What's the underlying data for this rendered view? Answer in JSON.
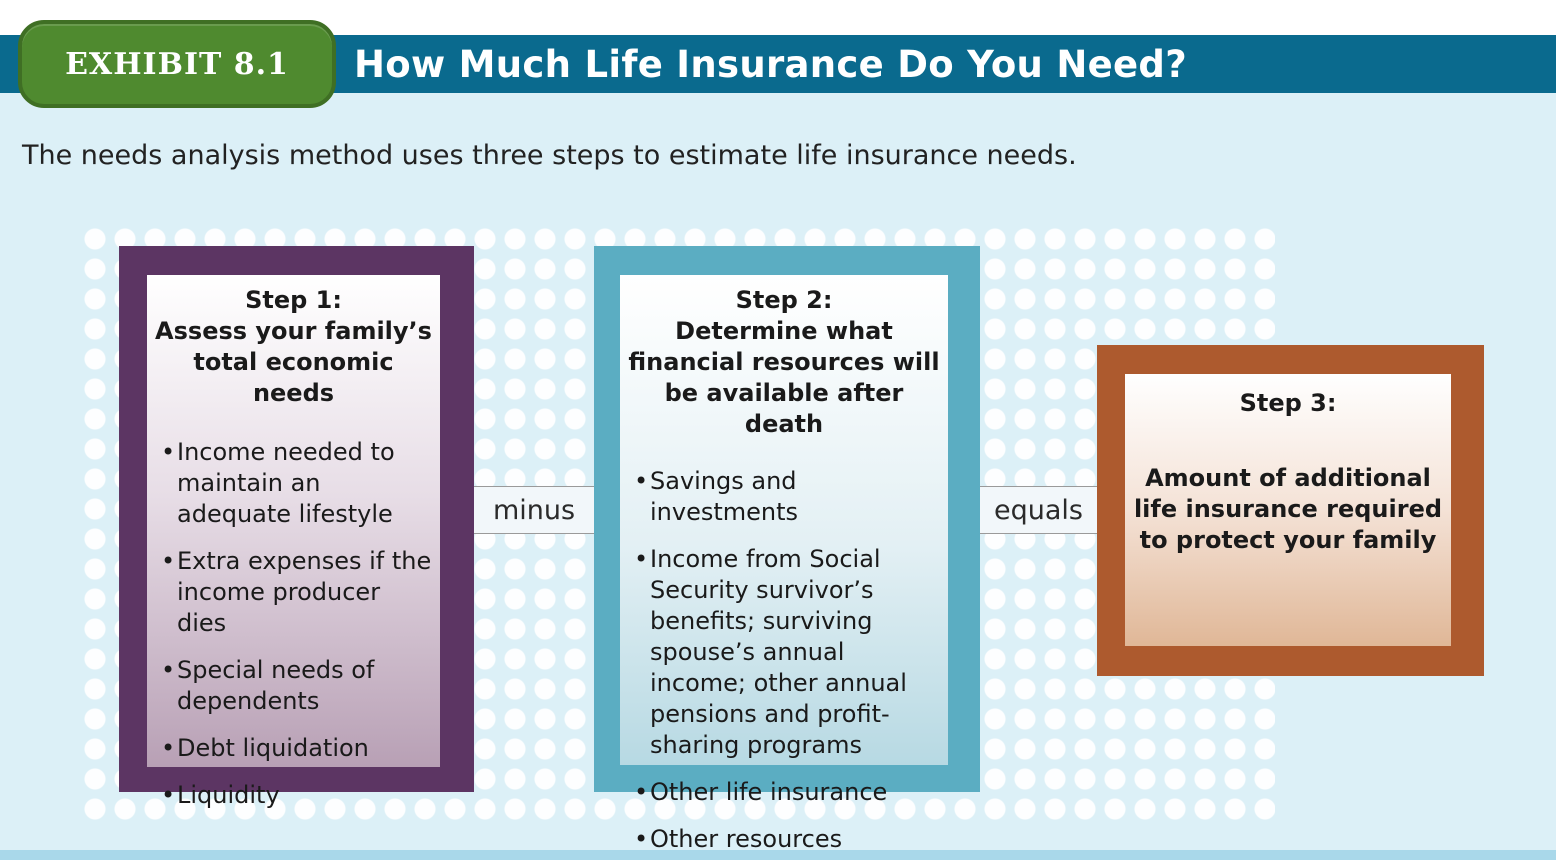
{
  "header": {
    "exhibit_label": "EXHIBIT 8.1",
    "title": "How Much Life Insurance Do You Need?"
  },
  "subtitle": "The needs analysis method uses three steps to estimate life insurance needs.",
  "steps": [
    {
      "label": "Step 1:",
      "heading_lines": [
        "Assess your family’s",
        "total economic needs"
      ],
      "bullets": [
        "Income needed to maintain an adequate lifestyle",
        "Extra expenses if the income producer dies",
        "Special needs of dependents",
        "Debt liquidation",
        "Liquidity"
      ]
    },
    {
      "label": "Step 2:",
      "heading_lines": [
        "Determine what",
        "financial resources will",
        "be available after death"
      ],
      "bullets": [
        "Savings and investments",
        "Income from Social Security survivor’s benefits; surviving spouse’s annual income; other annual pensions and profit-sharing programs",
        "Other life insurance",
        "Other resources"
      ]
    },
    {
      "label": "Step 3:",
      "result_lines": [
        "Amount of additional",
        "life insurance required",
        "to protect your family"
      ]
    }
  ],
  "operators": {
    "first": "minus",
    "second": "equals"
  },
  "colors": {
    "title_bar": "#0a6a8e",
    "exhibit_badge": "#4f8a2f",
    "step1_frame": "#5c3563",
    "step2_frame": "#5badc2",
    "step3_frame": "#ad5a2e",
    "background": "#dcf0f7"
  }
}
